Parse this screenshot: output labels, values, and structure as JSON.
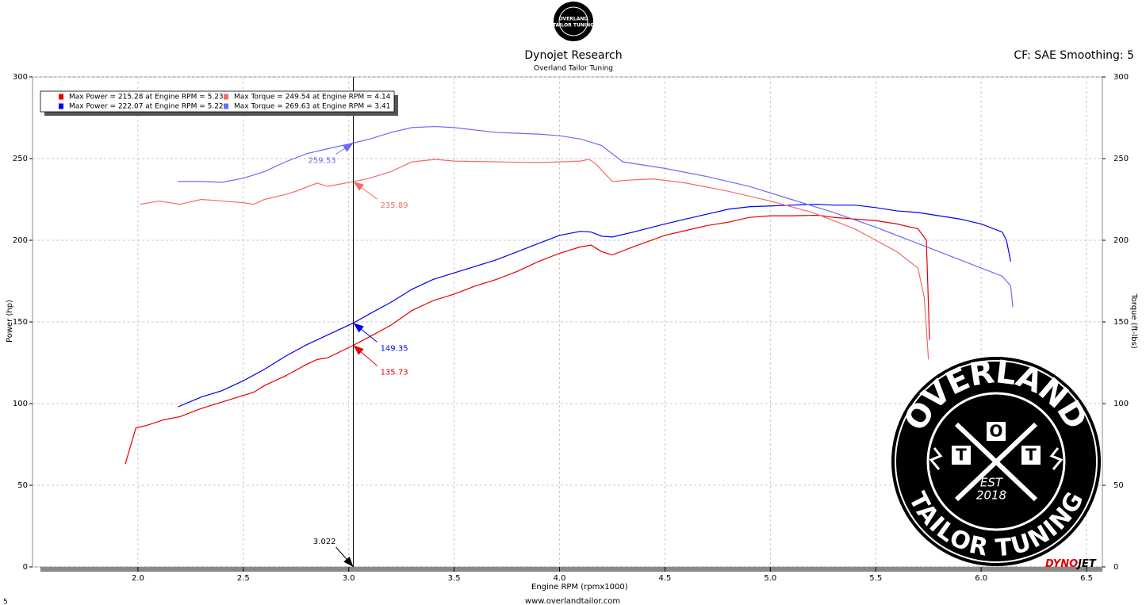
{
  "chart_data": {
    "type": "line",
    "title": "Dynojet Research",
    "subtitle": "Overland Tailor Tuning",
    "settings": "CF: SAE Smoothing: 5",
    "x_label": "Engine RPM (rpmx1000)",
    "y_label": "Power (hp)",
    "y2_label": "Torque (ft-lbs)",
    "xlim": [
      1.5,
      6.575
    ],
    "xticks": [
      {
        "value": 2,
        "label": "2.0"
      },
      2.5,
      {
        "value": 3,
        "label": "3.0"
      },
      3.5,
      {
        "value": 4,
        "label": "4.0"
      },
      4.5,
      {
        "value": 5,
        "label": "5.0"
      },
      5.5,
      {
        "value": 6,
        "label": "6.0"
      },
      6.5
    ],
    "ylim": [
      0,
      300
    ],
    "yticks": [
      0,
      50,
      100,
      150,
      200,
      250,
      300
    ],
    "y2lim": [
      0,
      300
    ],
    "y2ticks": [
      0,
      50,
      100,
      150,
      200,
      250,
      300
    ],
    "grid": true,
    "legend": "upper left",
    "cursor_x": 3.022,
    "series": [
      {
        "name": "Max Power = 215.28 at Engine RPM = 5.23",
        "color": "#e60000",
        "axis": "y",
        "cursor_value": 135.73,
        "x": [
          1.94,
          1.99,
          2.05,
          2.12,
          2.2,
          2.3,
          2.4,
          2.5,
          2.55,
          2.6,
          2.7,
          2.8,
          2.85,
          2.9,
          3.022,
          3.1,
          3.2,
          3.3,
          3.4,
          3.5,
          3.6,
          3.7,
          3.8,
          3.9,
          4.0,
          4.1,
          4.15,
          4.2,
          4.25,
          4.35,
          4.5,
          4.6,
          4.7,
          4.8,
          4.9,
          5.0,
          5.1,
          5.23,
          5.3,
          5.4,
          5.5,
          5.6,
          5.7,
          5.74,
          5.75,
          5.755
        ],
        "values": [
          63,
          85,
          87,
          90,
          92,
          97,
          101,
          105,
          107,
          111,
          117,
          124,
          127,
          128,
          135.73,
          141,
          148,
          157,
          163,
          167,
          172,
          176,
          181,
          187,
          192,
          196,
          197,
          193,
          191,
          196,
          203,
          206,
          209,
          211,
          214,
          215,
          215,
          215.28,
          214,
          213,
          212,
          210,
          207,
          200,
          160,
          139
        ]
      },
      {
        "name": "Max Power = 222.07 at Engine RPM = 5.22",
        "color": "#0000f0",
        "axis": "y",
        "cursor_value": 149.35,
        "x": [
          2.19,
          2.3,
          2.4,
          2.5,
          2.6,
          2.7,
          2.8,
          2.9,
          3.022,
          3.1,
          3.2,
          3.3,
          3.4,
          3.5,
          3.6,
          3.7,
          3.8,
          3.9,
          4.0,
          4.1,
          4.15,
          4.2,
          4.25,
          4.35,
          4.5,
          4.6,
          4.7,
          4.8,
          4.9,
          5.0,
          5.1,
          5.22,
          5.3,
          5.4,
          5.5,
          5.6,
          5.7,
          5.8,
          5.9,
          6.0,
          6.1,
          6.12,
          6.14
        ],
        "values": [
          98,
          104,
          108,
          114,
          121,
          129,
          136,
          142,
          149.35,
          155,
          162,
          170,
          176,
          180,
          184,
          188,
          193,
          198,
          203,
          205.5,
          205,
          202.5,
          202,
          205,
          210,
          213,
          216,
          219,
          220.5,
          221,
          221.5,
          222.07,
          221.5,
          221.5,
          220,
          218,
          217,
          215,
          213,
          210,
          205,
          200,
          187
        ]
      },
      {
        "name": "Max Torque = 249.54 at Engine RPM = 4.14",
        "color": "#f26b6b",
        "axis": "y2",
        "cursor_value": 235.89,
        "x": [
          2.01,
          2.1,
          2.2,
          2.3,
          2.4,
          2.5,
          2.55,
          2.6,
          2.7,
          2.75,
          2.85,
          2.9,
          3.022,
          3.1,
          3.2,
          3.3,
          3.41,
          3.5,
          3.7,
          3.9,
          4.0,
          4.1,
          4.14,
          4.17,
          4.25,
          4.35,
          4.45,
          4.6,
          4.8,
          5.0,
          5.2,
          5.4,
          5.5,
          5.6,
          5.7,
          5.73,
          5.75
        ],
        "values": [
          222,
          224,
          222,
          225,
          224,
          223,
          222,
          225,
          228,
          230,
          235,
          233,
          235.89,
          238,
          242,
          248,
          249.5,
          248.5,
          248,
          247.5,
          248,
          248.5,
          249.54,
          247,
          236,
          237,
          237.5,
          235,
          230,
          224,
          217,
          207,
          200,
          193,
          183,
          165,
          127
        ]
      },
      {
        "name": "Max Torque = 269.63 at Engine RPM = 3.41",
        "color": "#6b6bf5",
        "axis": "y2",
        "cursor_value": 259.53,
        "x": [
          2.19,
          2.3,
          2.4,
          2.5,
          2.6,
          2.7,
          2.8,
          2.9,
          3.022,
          3.1,
          3.2,
          3.3,
          3.41,
          3.5,
          3.7,
          3.9,
          4.0,
          4.1,
          4.2,
          4.3,
          4.5,
          4.7,
          4.9,
          5.1,
          5.3,
          5.5,
          5.7,
          5.9,
          6.0,
          6.1,
          6.14,
          6.15
        ],
        "values": [
          236,
          236,
          235.5,
          238,
          242,
          248,
          253,
          256,
          259.53,
          262,
          266,
          269,
          269.63,
          269,
          266,
          265,
          264,
          262,
          258,
          248,
          244,
          239,
          233,
          225,
          217,
          208,
          198,
          188,
          183,
          178,
          172,
          159
        ]
      }
    ]
  },
  "logo": {
    "top_text": "OVERLAND",
    "bottom_text": "TAILOR TUNING",
    "letters": [
      "T",
      "O",
      "T"
    ],
    "est": "EST",
    "year": "2018"
  },
  "brand": [
    "DYNO",
    "JET"
  ],
  "footer": "www.overlandtailor.com",
  "corner": "5"
}
